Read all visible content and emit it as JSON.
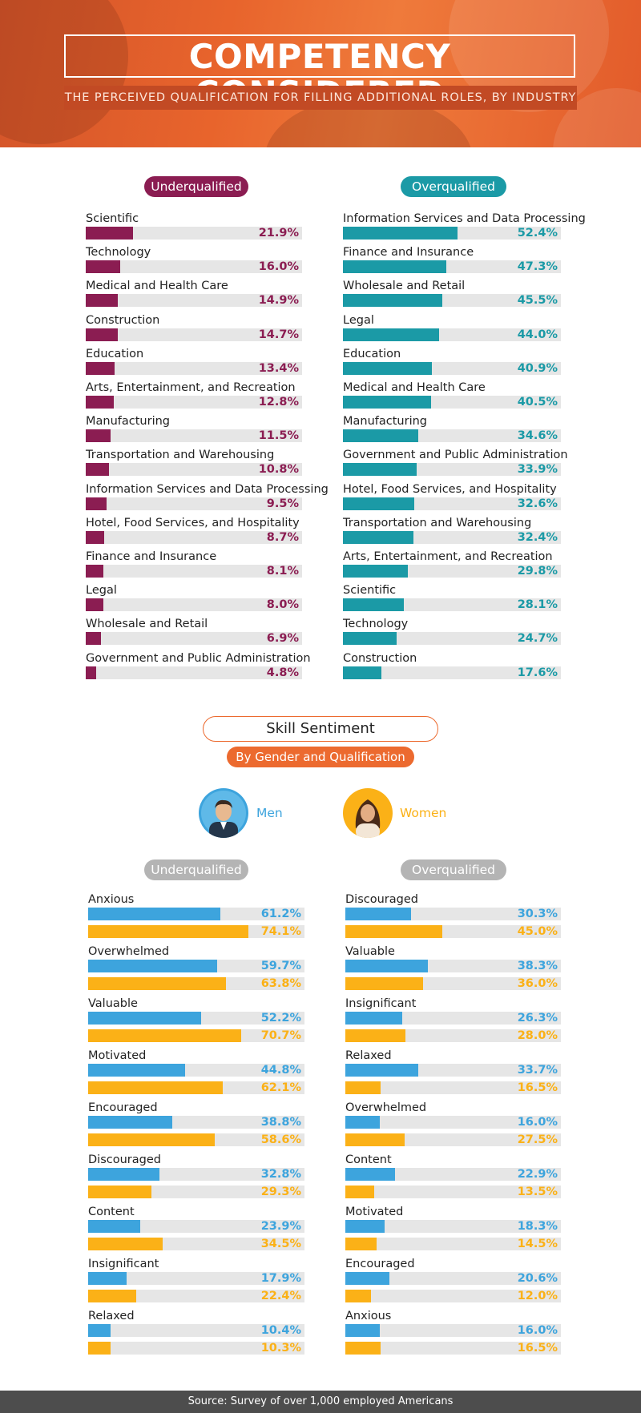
{
  "header": {
    "title": "COMPETENCY CONSIDERED",
    "subtitle": "THE PERCEIVED QUALIFICATION FOR FILLING ADDITIONAL ROLES, BY INDUSTRY"
  },
  "colors": {
    "header_orange": "#e8642c",
    "underqualified": "#8b1d52",
    "overqualified": "#1b9aa6",
    "men": "#3da4dd",
    "women": "#fbb117",
    "accent": "#ec6a2f",
    "track": "#e6e6e6",
    "footer": "#4d4d4d"
  },
  "chart_data": [
    {
      "type": "bar",
      "orientation": "horizontal",
      "title": "Underqualified",
      "value_unit": "%",
      "xlim": [
        0,
        100
      ],
      "categories": [
        "Scientific",
        "Technology",
        "Medical and Health Care",
        "Construction",
        "Education",
        "Arts, Entertainment, and Recreation",
        "Manufacturing",
        "Transportation and Warehousing",
        "Information Services and Data Processing",
        "Hotel, Food Services, and Hospitality",
        "Finance and Insurance",
        "Legal",
        "Wholesale and Retail",
        "Government and Public Administration"
      ],
      "values": [
        21.9,
        16.0,
        14.9,
        14.7,
        13.4,
        12.8,
        11.5,
        10.8,
        9.5,
        8.7,
        8.1,
        8.0,
        6.9,
        4.8
      ],
      "labels": [
        "21.9%",
        "16.0%",
        "14.9%",
        "14.7%",
        "13.4%",
        "12.8%",
        "11.5%",
        "10.8%",
        "9.5%",
        "8.7%",
        "8.1%",
        "8.0%",
        "6.9%",
        "4.8%"
      ]
    },
    {
      "type": "bar",
      "orientation": "horizontal",
      "title": "Overqualified",
      "value_unit": "%",
      "xlim": [
        0,
        100
      ],
      "categories": [
        "Information Services and Data Processing",
        "Finance and Insurance",
        "Wholesale and Retail",
        "Legal",
        "Education",
        "Medical and Health Care",
        "Manufacturing",
        "Government and Public Administration",
        "Hotel, Food Services, and Hospitality",
        "Transportation and Warehousing",
        "Arts, Entertainment, and Recreation",
        "Scientific",
        "Technology",
        "Construction"
      ],
      "values": [
        52.4,
        47.3,
        45.5,
        44.0,
        40.9,
        40.5,
        34.6,
        33.9,
        32.6,
        32.4,
        29.8,
        28.1,
        24.7,
        17.6
      ],
      "labels": [
        "52.4%",
        "47.3%",
        "45.5%",
        "44.0%",
        "40.9%",
        "40.5%",
        "34.6%",
        "33.9%",
        "32.6%",
        "32.4%",
        "29.8%",
        "28.1%",
        "24.7%",
        "17.6%"
      ]
    },
    {
      "type": "bar",
      "orientation": "horizontal",
      "title": "Underqualified",
      "section": "Skill Sentiment",
      "value_unit": "%",
      "xlim": [
        0,
        100
      ],
      "categories": [
        "Anxious",
        "Overwhelmed",
        "Valuable",
        "Motivated",
        "Encouraged",
        "Discouraged",
        "Content",
        "Insignificant",
        "Relaxed"
      ],
      "series": [
        {
          "name": "Men",
          "values": [
            61.2,
            59.7,
            52.2,
            44.8,
            38.8,
            32.8,
            23.9,
            17.9,
            10.4
          ],
          "labels": [
            "61.2%",
            "59.7%",
            "52.2%",
            "44.8%",
            "38.8%",
            "32.8%",
            "23.9%",
            "17.9%",
            "10.4%"
          ]
        },
        {
          "name": "Women",
          "values": [
            74.1,
            63.8,
            70.7,
            62.1,
            58.6,
            29.3,
            34.5,
            22.4,
            10.3
          ],
          "labels": [
            "74.1%",
            "63.8%",
            "70.7%",
            "62.1%",
            "58.6%",
            "29.3%",
            "34.5%",
            "22.4%",
            "10.3%"
          ]
        }
      ]
    },
    {
      "type": "bar",
      "orientation": "horizontal",
      "title": "Overqualified",
      "section": "Skill Sentiment",
      "value_unit": "%",
      "xlim": [
        0,
        100
      ],
      "categories": [
        "Discouraged",
        "Valuable",
        "Insignificant",
        "Relaxed",
        "Overwhelmed",
        "Content",
        "Motivated",
        "Encouraged",
        "Anxious"
      ],
      "series": [
        {
          "name": "Men",
          "values": [
            30.3,
            38.3,
            26.3,
            33.7,
            16.0,
            22.9,
            18.3,
            20.6,
            16.0
          ],
          "labels": [
            "30.3%",
            "38.3%",
            "26.3%",
            "33.7%",
            "16.0%",
            "22.9%",
            "18.3%",
            "20.6%",
            "16.0%"
          ]
        },
        {
          "name": "Women",
          "values": [
            45.0,
            36.0,
            28.0,
            16.5,
            27.5,
            13.5,
            14.5,
            12.0,
            16.5
          ],
          "labels": [
            "45.0%",
            "36.0%",
            "28.0%",
            "16.5%",
            "27.5%",
            "13.5%",
            "14.5%",
            "12.0%",
            "16.5%"
          ]
        }
      ]
    }
  ],
  "skill_sentiment": {
    "title": "Skill Sentiment",
    "subtitle": "By Gender and Qualification",
    "legend": [
      {
        "label": "Men",
        "icon": "man-avatar-icon"
      },
      {
        "label": "Women",
        "icon": "woman-avatar-icon"
      }
    ]
  },
  "footer": {
    "source": "Source: Survey of over 1,000 employed Americans"
  }
}
